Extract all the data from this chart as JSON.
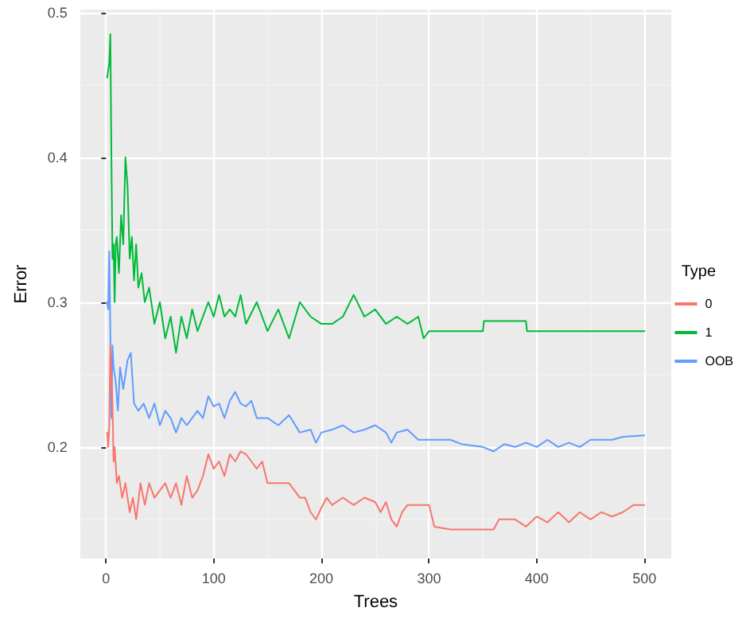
{
  "chart_data": {
    "type": "line",
    "xlabel": "Trees",
    "ylabel": "Error",
    "legend_title": "Type",
    "legend": "right",
    "grid": true,
    "xlim": [
      -24,
      525
    ],
    "xticks": [
      0,
      100,
      200,
      300,
      400,
      500
    ],
    "ylim": [
      0.123,
      0.502
    ],
    "yticks": [
      0.2,
      0.3,
      0.4,
      0.5
    ],
    "series": [
      {
        "name": "0",
        "color": "#f8766d",
        "x": [
          1,
          2,
          3,
          4,
          5,
          6,
          7,
          8,
          10,
          12,
          15,
          18,
          22,
          25,
          28,
          32,
          36,
          40,
          45,
          50,
          55,
          60,
          65,
          70,
          75,
          80,
          85,
          90,
          95,
          100,
          105,
          110,
          115,
          120,
          125,
          130,
          135,
          140,
          145,
          150,
          160,
          170,
          175,
          180,
          185,
          190,
          195,
          200,
          205,
          210,
          220,
          230,
          240,
          250,
          255,
          260,
          265,
          270,
          275,
          280,
          290,
          300,
          305,
          320,
          340,
          360,
          365,
          380,
          390,
          400,
          410,
          420,
          430,
          440,
          450,
          460,
          470,
          480,
          490,
          500
        ],
        "values": [
          0.21,
          0.2,
          0.215,
          0.27,
          0.25,
          0.23,
          0.19,
          0.2,
          0.175,
          0.18,
          0.165,
          0.175,
          0.155,
          0.165,
          0.15,
          0.175,
          0.16,
          0.175,
          0.165,
          0.17,
          0.175,
          0.165,
          0.175,
          0.16,
          0.18,
          0.165,
          0.17,
          0.18,
          0.195,
          0.185,
          0.19,
          0.18,
          0.195,
          0.19,
          0.197,
          0.195,
          0.19,
          0.185,
          0.19,
          0.175,
          0.175,
          0.175,
          0.17,
          0.165,
          0.165,
          0.155,
          0.15,
          0.158,
          0.165,
          0.16,
          0.165,
          0.16,
          0.165,
          0.162,
          0.155,
          0.162,
          0.15,
          0.145,
          0.155,
          0.16,
          0.16,
          0.16,
          0.145,
          0.143,
          0.143,
          0.143,
          0.15,
          0.15,
          0.145,
          0.152,
          0.148,
          0.155,
          0.148,
          0.155,
          0.15,
          0.155,
          0.152,
          0.155,
          0.16,
          0.16
        ]
      },
      {
        "name": "1",
        "color": "#00ba38",
        "x": [
          1,
          2,
          3,
          4,
          5,
          6,
          7,
          8,
          9,
          10,
          12,
          14,
          16,
          18,
          20,
          22,
          24,
          26,
          28,
          30,
          33,
          36,
          40,
          45,
          50,
          55,
          60,
          65,
          70,
          75,
          80,
          85,
          90,
          95,
          100,
          105,
          110,
          115,
          120,
          125,
          130,
          140,
          150,
          160,
          170,
          180,
          190,
          200,
          210,
          220,
          230,
          240,
          250,
          260,
          270,
          280,
          290,
          295,
          300,
          350,
          351,
          390,
          391,
          500
        ],
        "values": [
          0.455,
          0.46,
          0.465,
          0.485,
          0.4,
          0.33,
          0.34,
          0.3,
          0.34,
          0.345,
          0.32,
          0.36,
          0.34,
          0.4,
          0.38,
          0.33,
          0.345,
          0.315,
          0.34,
          0.31,
          0.32,
          0.3,
          0.31,
          0.285,
          0.3,
          0.275,
          0.29,
          0.265,
          0.29,
          0.275,
          0.295,
          0.28,
          0.29,
          0.3,
          0.29,
          0.305,
          0.29,
          0.295,
          0.29,
          0.305,
          0.285,
          0.3,
          0.28,
          0.295,
          0.275,
          0.3,
          0.29,
          0.285,
          0.285,
          0.29,
          0.305,
          0.29,
          0.295,
          0.285,
          0.29,
          0.285,
          0.29,
          0.275,
          0.28,
          0.28,
          0.287,
          0.287,
          0.28,
          0.28
        ]
      },
      {
        "name": "OOB",
        "color": "#619cff",
        "x": [
          1,
          2,
          3,
          4,
          5,
          6,
          7,
          9,
          11,
          13,
          16,
          20,
          23,
          26,
          30,
          35,
          40,
          45,
          50,
          55,
          60,
          65,
          70,
          75,
          80,
          85,
          90,
          95,
          100,
          105,
          110,
          115,
          120,
          125,
          130,
          135,
          140,
          150,
          160,
          170,
          180,
          190,
          195,
          200,
          210,
          220,
          230,
          240,
          250,
          260,
          265,
          270,
          280,
          290,
          300,
          320,
          330,
          350,
          360,
          370,
          380,
          390,
          400,
          410,
          420,
          430,
          440,
          450,
          470,
          480,
          500
        ],
        "values": [
          0.3,
          0.295,
          0.335,
          0.28,
          0.22,
          0.27,
          0.255,
          0.245,
          0.225,
          0.255,
          0.24,
          0.26,
          0.265,
          0.23,
          0.225,
          0.23,
          0.22,
          0.23,
          0.215,
          0.225,
          0.22,
          0.21,
          0.22,
          0.215,
          0.22,
          0.225,
          0.22,
          0.235,
          0.228,
          0.23,
          0.22,
          0.232,
          0.238,
          0.23,
          0.228,
          0.232,
          0.22,
          0.22,
          0.215,
          0.222,
          0.21,
          0.212,
          0.203,
          0.21,
          0.212,
          0.215,
          0.21,
          0.212,
          0.215,
          0.21,
          0.203,
          0.21,
          0.212,
          0.205,
          0.205,
          0.205,
          0.202,
          0.2,
          0.197,
          0.202,
          0.2,
          0.203,
          0.2,
          0.205,
          0.2,
          0.203,
          0.2,
          0.205,
          0.205,
          0.207,
          0.208
        ]
      }
    ]
  }
}
